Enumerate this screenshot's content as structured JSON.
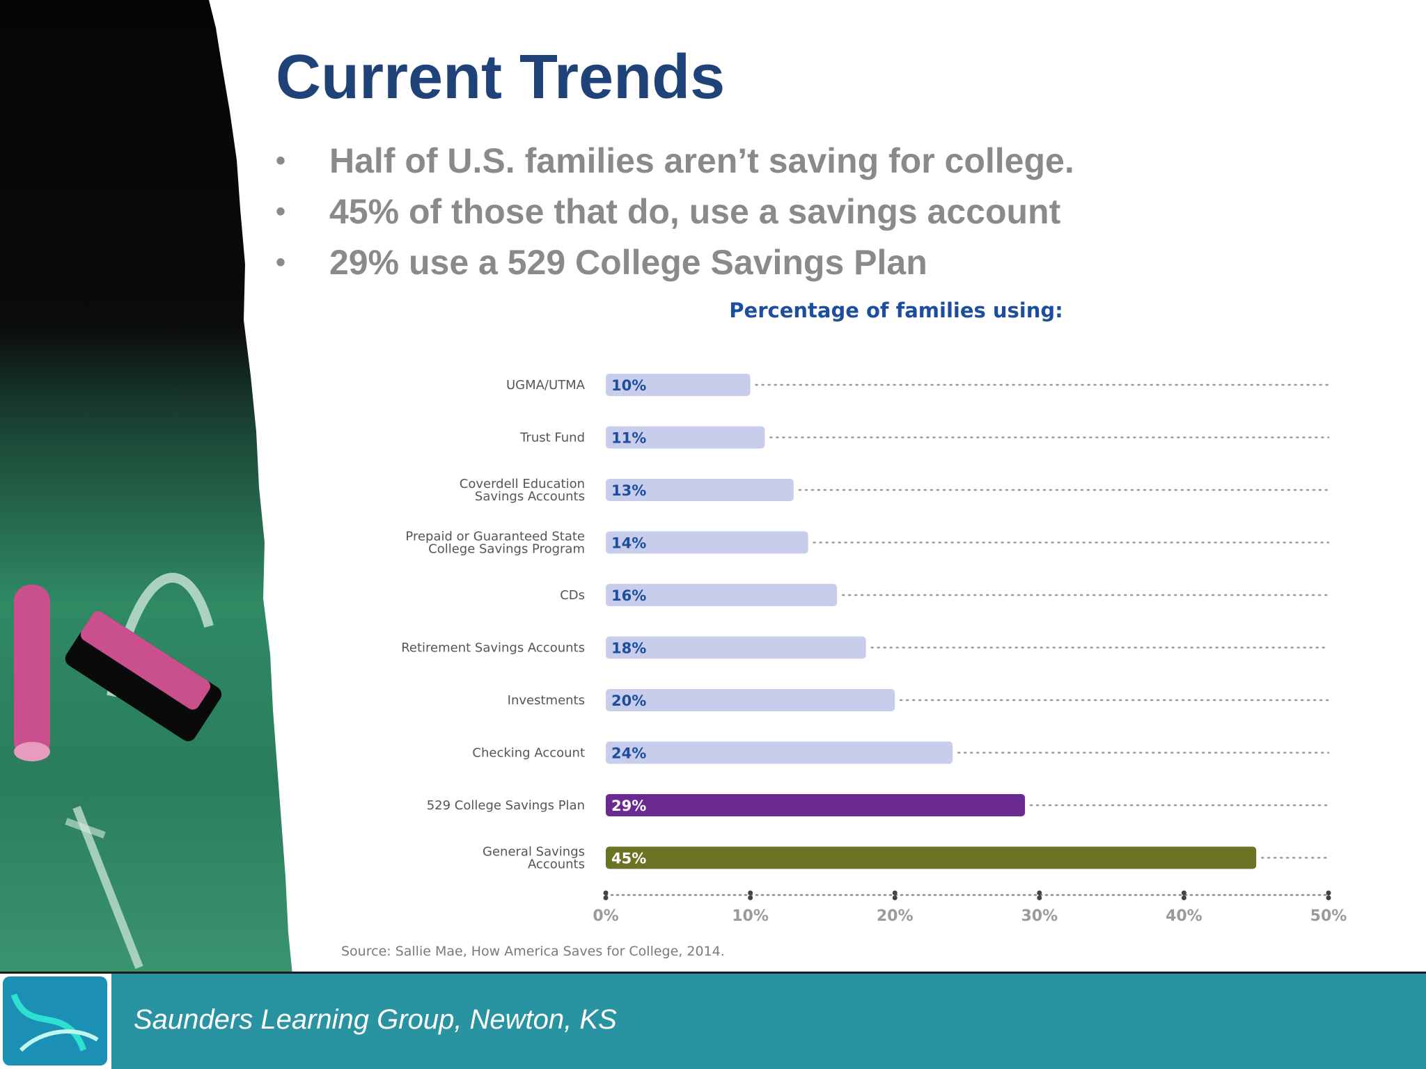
{
  "slide": {
    "title": "Current Trends",
    "bullets": [
      "Half of U.S. families aren’t saving for college.",
      "45% of those that do, use a savings account",
      "29% use a 529 College Savings Plan"
    ],
    "bullet_glyph": "•"
  },
  "footer": {
    "text": "Saunders Learning Group, Newton, KS",
    "background_color": "#2a93a1"
  },
  "chart_data": {
    "type": "bar",
    "orientation": "horizontal",
    "title": "Percentage of families using:",
    "categories": [
      [
        "UGMA/UTMA"
      ],
      [
        "Trust Fund"
      ],
      [
        "Coverdell Education",
        "Savings Accounts"
      ],
      [
        "Prepaid or Guaranteed State",
        "College Savings Program"
      ],
      [
        "CDs"
      ],
      [
        "Retirement Savings Accounts"
      ],
      [
        "Investments"
      ],
      [
        "Checking Account"
      ],
      [
        "529 College Savings Plan"
      ],
      [
        "General Savings",
        "Accounts"
      ]
    ],
    "values": [
      10,
      11,
      13,
      14,
      16,
      18,
      20,
      24,
      29,
      45
    ],
    "value_labels": [
      "10%",
      "11%",
      "13%",
      "14%",
      "16%",
      "18%",
      "20%",
      "24%",
      "29%",
      "45%"
    ],
    "bar_colors": [
      "#c8cdec",
      "#c8cdec",
      "#c8cdec",
      "#c8cdec",
      "#c8cdec",
      "#c8cdec",
      "#c8cdec",
      "#c8cdec",
      "#6b2a91",
      "#6b7425"
    ],
    "value_label_colors": [
      "#1d4e9e",
      "#1d4e9e",
      "#1d4e9e",
      "#1d4e9e",
      "#1d4e9e",
      "#1d4e9e",
      "#1d4e9e",
      "#1d4e9e",
      "#ffffff",
      "#ffffff"
    ],
    "xlim": [
      0,
      50
    ],
    "xticks": [
      0,
      10,
      20,
      30,
      40,
      50
    ],
    "xtick_labels": [
      "0%",
      "10%",
      "20%",
      "30%",
      "40%",
      "50%"
    ],
    "grid": "dotted row guides",
    "source": "Source: Sallie Mae, How America Saves for College, 2014.",
    "title_color": "#1d4e9e"
  }
}
